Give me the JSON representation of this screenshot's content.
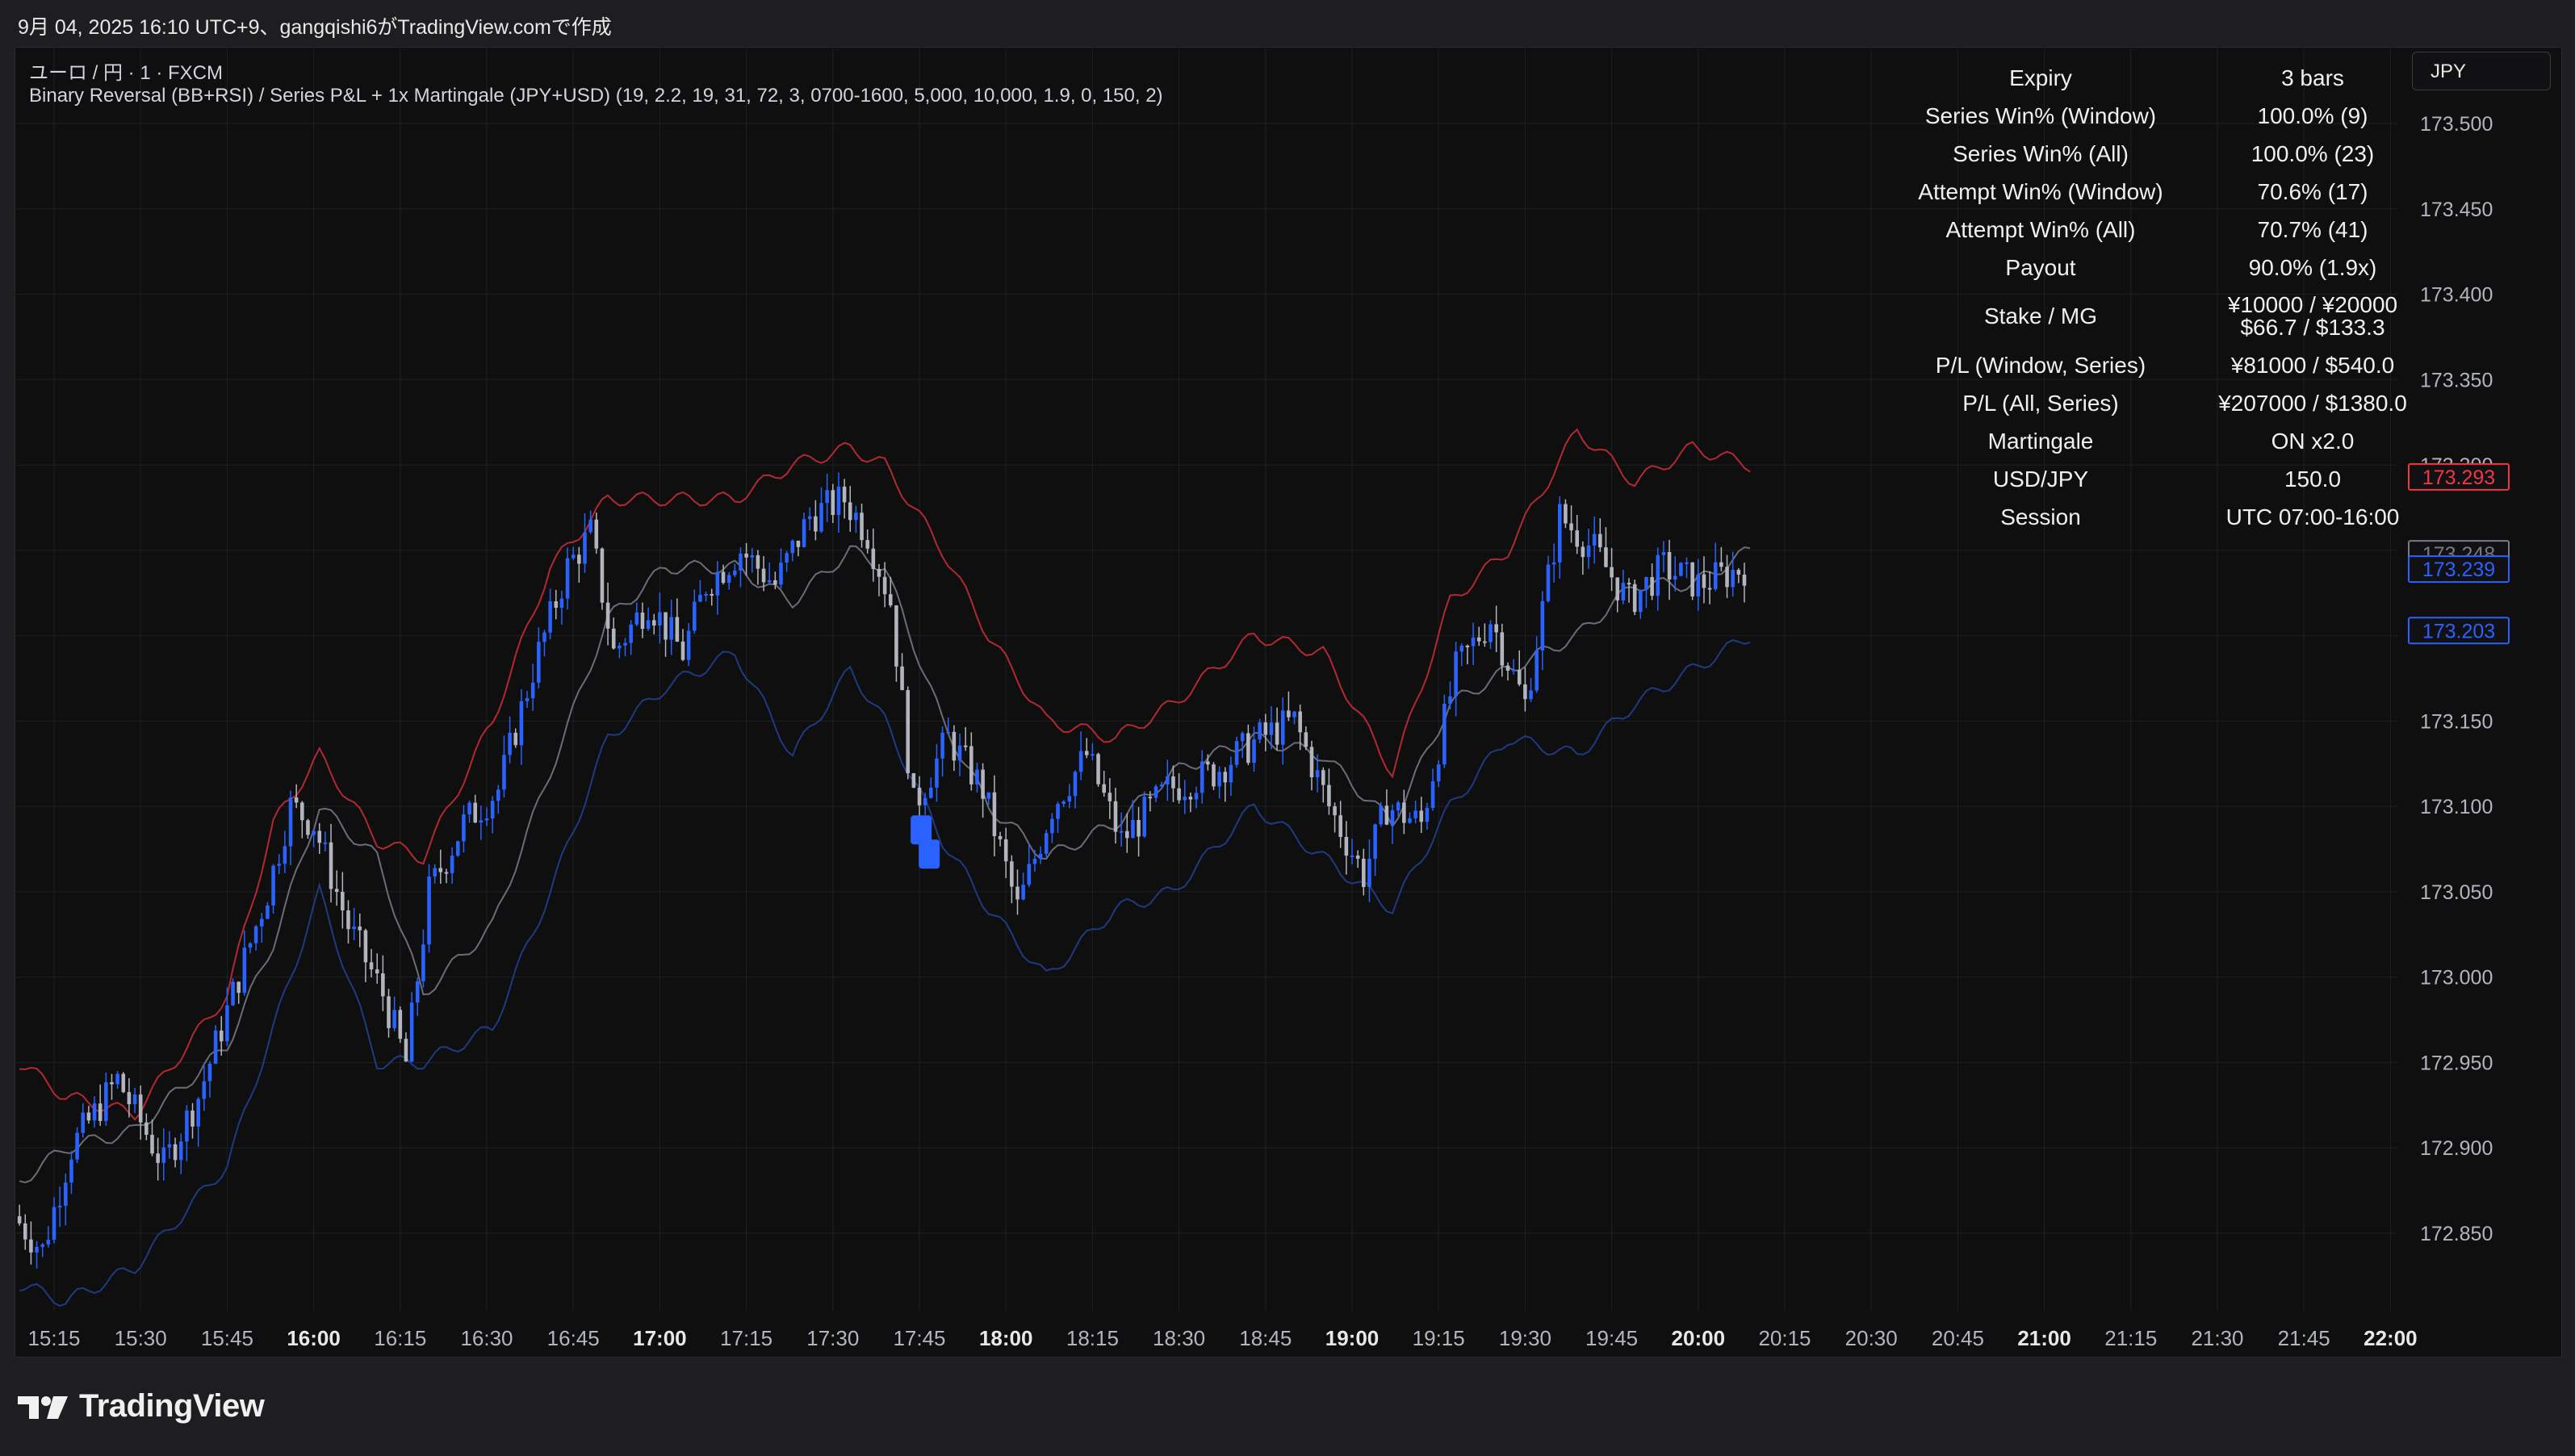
{
  "header": {
    "attribution": "9月 04, 2025 16:10 UTC+9、gangqishi6がTradingView.comで作成"
  },
  "legend": {
    "symbol": "ユーロ / 円 · 1 · FXCM",
    "indicator": "Binary Reversal (BB+RSI) / Series P&L + 1x Martingale (JPY+USD) (19, 2.2, 19, 31, 72, 3, 0700-1600, 5,000, 10,000, 1.9, 0, 150, 2)"
  },
  "currency_badge": "JPY",
  "stats_table": {
    "rows": [
      {
        "key": "Expiry",
        "value": "3 bars"
      },
      {
        "key": "Series Win% (Window)",
        "value": "100.0% (9)"
      },
      {
        "key": "Series Win% (All)",
        "value": "100.0% (23)"
      },
      {
        "key": "Attempt Win% (Window)",
        "value": "70.6% (17)"
      },
      {
        "key": "Attempt Win% (All)",
        "value": "70.7% (41)"
      },
      {
        "key": "Payout",
        "value": "90.0% (1.9x)"
      },
      {
        "key": "Stake / MG",
        "value": "¥10000 / ¥20000",
        "value2": "$66.7 / $133.3"
      },
      {
        "key": "P/L (Window, Series)",
        "value": "¥81000 / $540.0"
      },
      {
        "key": "P/L (All, Series)",
        "value": "¥207000 / $1380.0"
      },
      {
        "key": "Martingale",
        "value": "ON x2.0"
      },
      {
        "key": "USD/JPY",
        "value": "150.0"
      },
      {
        "key": "Session",
        "value": "UTC 07:00-16:00"
      }
    ]
  },
  "chart_data": {
    "type": "candlestick",
    "instrument": "ユーロ / 円",
    "timeframe": "1",
    "source": "FXCM",
    "x_ticks": [
      "15:15",
      "15:30",
      "15:45",
      "16:00",
      "16:15",
      "16:30",
      "16:45",
      "17:00",
      "17:15",
      "17:30",
      "17:45",
      "18:00",
      "18:15",
      "18:30",
      "18:45",
      "19:00",
      "19:15",
      "19:30",
      "19:45",
      "20:00",
      "20:15",
      "20:30",
      "20:45",
      "21:00",
      "21:15",
      "21:30",
      "21:45",
      "22:00"
    ],
    "x_ticks_bold": [
      "16:00",
      "17:00",
      "18:00",
      "19:00",
      "20:00",
      "21:00",
      "22:00"
    ],
    "y_ticks": [
      173.5,
      173.45,
      173.4,
      173.35,
      173.3,
      173.25,
      173.2,
      173.15,
      173.1,
      173.05,
      173.0,
      172.95,
      172.9,
      172.85
    ],
    "ylim": [
      172.8,
      173.55
    ],
    "grid": true,
    "price_labels": [
      {
        "value": "173.293",
        "color": "#f23645",
        "style": "outline"
      },
      {
        "value": "173.248",
        "color": "#787b86",
        "style": "outline"
      },
      {
        "value": "173.239",
        "color": "#2962ff",
        "style": "outline"
      },
      {
        "value": "173.203",
        "color": "#2962ff",
        "style": "outline"
      }
    ],
    "bollinger_keypoints": {
      "mid": [
        [
          0,
          172.88
        ],
        [
          8,
          172.9
        ],
        [
          20,
          172.91
        ],
        [
          36,
          172.96
        ],
        [
          44,
          173.02
        ],
        [
          52,
          173.1
        ],
        [
          62,
          173.07
        ],
        [
          70,
          172.99
        ],
        [
          82,
          173.03
        ],
        [
          92,
          173.12
        ],
        [
          102,
          173.21
        ],
        [
          112,
          173.24
        ],
        [
          124,
          173.24
        ],
        [
          134,
          173.22
        ],
        [
          144,
          173.25
        ],
        [
          150,
          173.24
        ],
        [
          160,
          173.15
        ],
        [
          168,
          173.1
        ],
        [
          178,
          173.07
        ],
        [
          190,
          173.09
        ],
        [
          200,
          173.12
        ],
        [
          214,
          173.14
        ],
        [
          226,
          173.13
        ],
        [
          238,
          173.09
        ],
        [
          248,
          173.16
        ],
        [
          258,
          173.18
        ],
        [
          270,
          173.2
        ],
        [
          280,
          173.23
        ],
        [
          290,
          173.23
        ],
        [
          300,
          173.25
        ]
      ],
      "upper": [
        [
          0,
          172.95
        ],
        [
          8,
          172.93
        ],
        [
          20,
          172.92
        ],
        [
          36,
          172.99
        ],
        [
          44,
          173.09
        ],
        [
          52,
          173.13
        ],
        [
          62,
          173.08
        ],
        [
          70,
          173.07
        ],
        [
          82,
          173.15
        ],
        [
          92,
          173.24
        ],
        [
          102,
          173.28
        ],
        [
          112,
          173.28
        ],
        [
          124,
          173.28
        ],
        [
          134,
          173.3
        ],
        [
          144,
          173.31
        ],
        [
          150,
          173.3
        ],
        [
          160,
          173.25
        ],
        [
          168,
          173.2
        ],
        [
          178,
          173.15
        ],
        [
          190,
          173.14
        ],
        [
          200,
          173.16
        ],
        [
          214,
          173.2
        ],
        [
          226,
          173.19
        ],
        [
          238,
          173.12
        ],
        [
          248,
          173.22
        ],
        [
          258,
          173.25
        ],
        [
          270,
          173.32
        ],
        [
          280,
          173.29
        ],
        [
          290,
          173.31
        ],
        [
          300,
          173.3
        ]
      ],
      "lower": [
        [
          0,
          172.82
        ],
        [
          8,
          172.81
        ],
        [
          20,
          172.83
        ],
        [
          36,
          172.89
        ],
        [
          44,
          172.97
        ],
        [
          52,
          173.05
        ],
        [
          62,
          172.95
        ],
        [
          70,
          172.95
        ],
        [
          82,
          172.97
        ],
        [
          92,
          173.05
        ],
        [
          102,
          173.14
        ],
        [
          112,
          173.17
        ],
        [
          124,
          173.19
        ],
        [
          134,
          173.13
        ],
        [
          144,
          173.18
        ],
        [
          150,
          173.15
        ],
        [
          160,
          173.08
        ],
        [
          168,
          173.04
        ],
        [
          178,
          173.0
        ],
        [
          190,
          173.04
        ],
        [
          200,
          173.05
        ],
        [
          214,
          173.1
        ],
        [
          226,
          173.07
        ],
        [
          238,
          173.04
        ],
        [
          248,
          173.1
        ],
        [
          258,
          173.14
        ],
        [
          270,
          173.13
        ],
        [
          280,
          173.16
        ],
        [
          290,
          173.18
        ],
        [
          300,
          173.2
        ]
      ]
    },
    "price_path": [
      [
        0,
        172.86
      ],
      [
        5,
        172.84
      ],
      [
        10,
        172.9
      ],
      [
        18,
        172.94
      ],
      [
        26,
        172.89
      ],
      [
        32,
        172.93
      ],
      [
        38,
        172.99
      ],
      [
        44,
        173.05
      ],
      [
        48,
        173.1
      ],
      [
        52,
        173.09
      ],
      [
        58,
        173.03
      ],
      [
        64,
        172.99
      ],
      [
        68,
        172.95
      ],
      [
        72,
        173.05
      ],
      [
        78,
        173.09
      ],
      [
        84,
        173.11
      ],
      [
        90,
        173.18
      ],
      [
        96,
        173.24
      ],
      [
        100,
        173.26
      ],
      [
        104,
        173.19
      ],
      [
        110,
        173.22
      ],
      [
        116,
        173.19
      ],
      [
        120,
        173.23
      ],
      [
        126,
        173.25
      ],
      [
        132,
        173.23
      ],
      [
        138,
        173.27
      ],
      [
        144,
        173.28
      ],
      [
        148,
        173.26
      ],
      [
        152,
        173.22
      ],
      [
        156,
        173.1
      ],
      [
        162,
        173.14
      ],
      [
        168,
        173.11
      ],
      [
        174,
        173.04
      ],
      [
        180,
        173.1
      ],
      [
        186,
        173.13
      ],
      [
        192,
        173.08
      ],
      [
        200,
        173.11
      ],
      [
        208,
        173.12
      ],
      [
        216,
        173.14
      ],
      [
        222,
        173.15
      ],
      [
        228,
        173.1
      ],
      [
        234,
        173.06
      ],
      [
        238,
        173.1
      ],
      [
        244,
        173.09
      ],
      [
        250,
        173.18
      ],
      [
        256,
        173.21
      ],
      [
        262,
        173.16
      ],
      [
        268,
        173.27
      ],
      [
        274,
        173.25
      ],
      [
        280,
        173.22
      ],
      [
        286,
        173.24
      ],
      [
        292,
        173.23
      ],
      [
        300,
        173.24
      ]
    ],
    "signal_markers": [
      {
        "index": 157,
        "price": 173.09,
        "color": "#2962ff"
      }
    ]
  },
  "colors": {
    "up_candle": "#2962ff",
    "down_candle": "#b2b5be",
    "bb_upper": "#b22833",
    "bb_mid": "#6a6d78",
    "bb_lower": "#1f3a80",
    "grid": "#1f2023",
    "background": "#0f0f10"
  },
  "footer": {
    "brand": "TradingView"
  }
}
